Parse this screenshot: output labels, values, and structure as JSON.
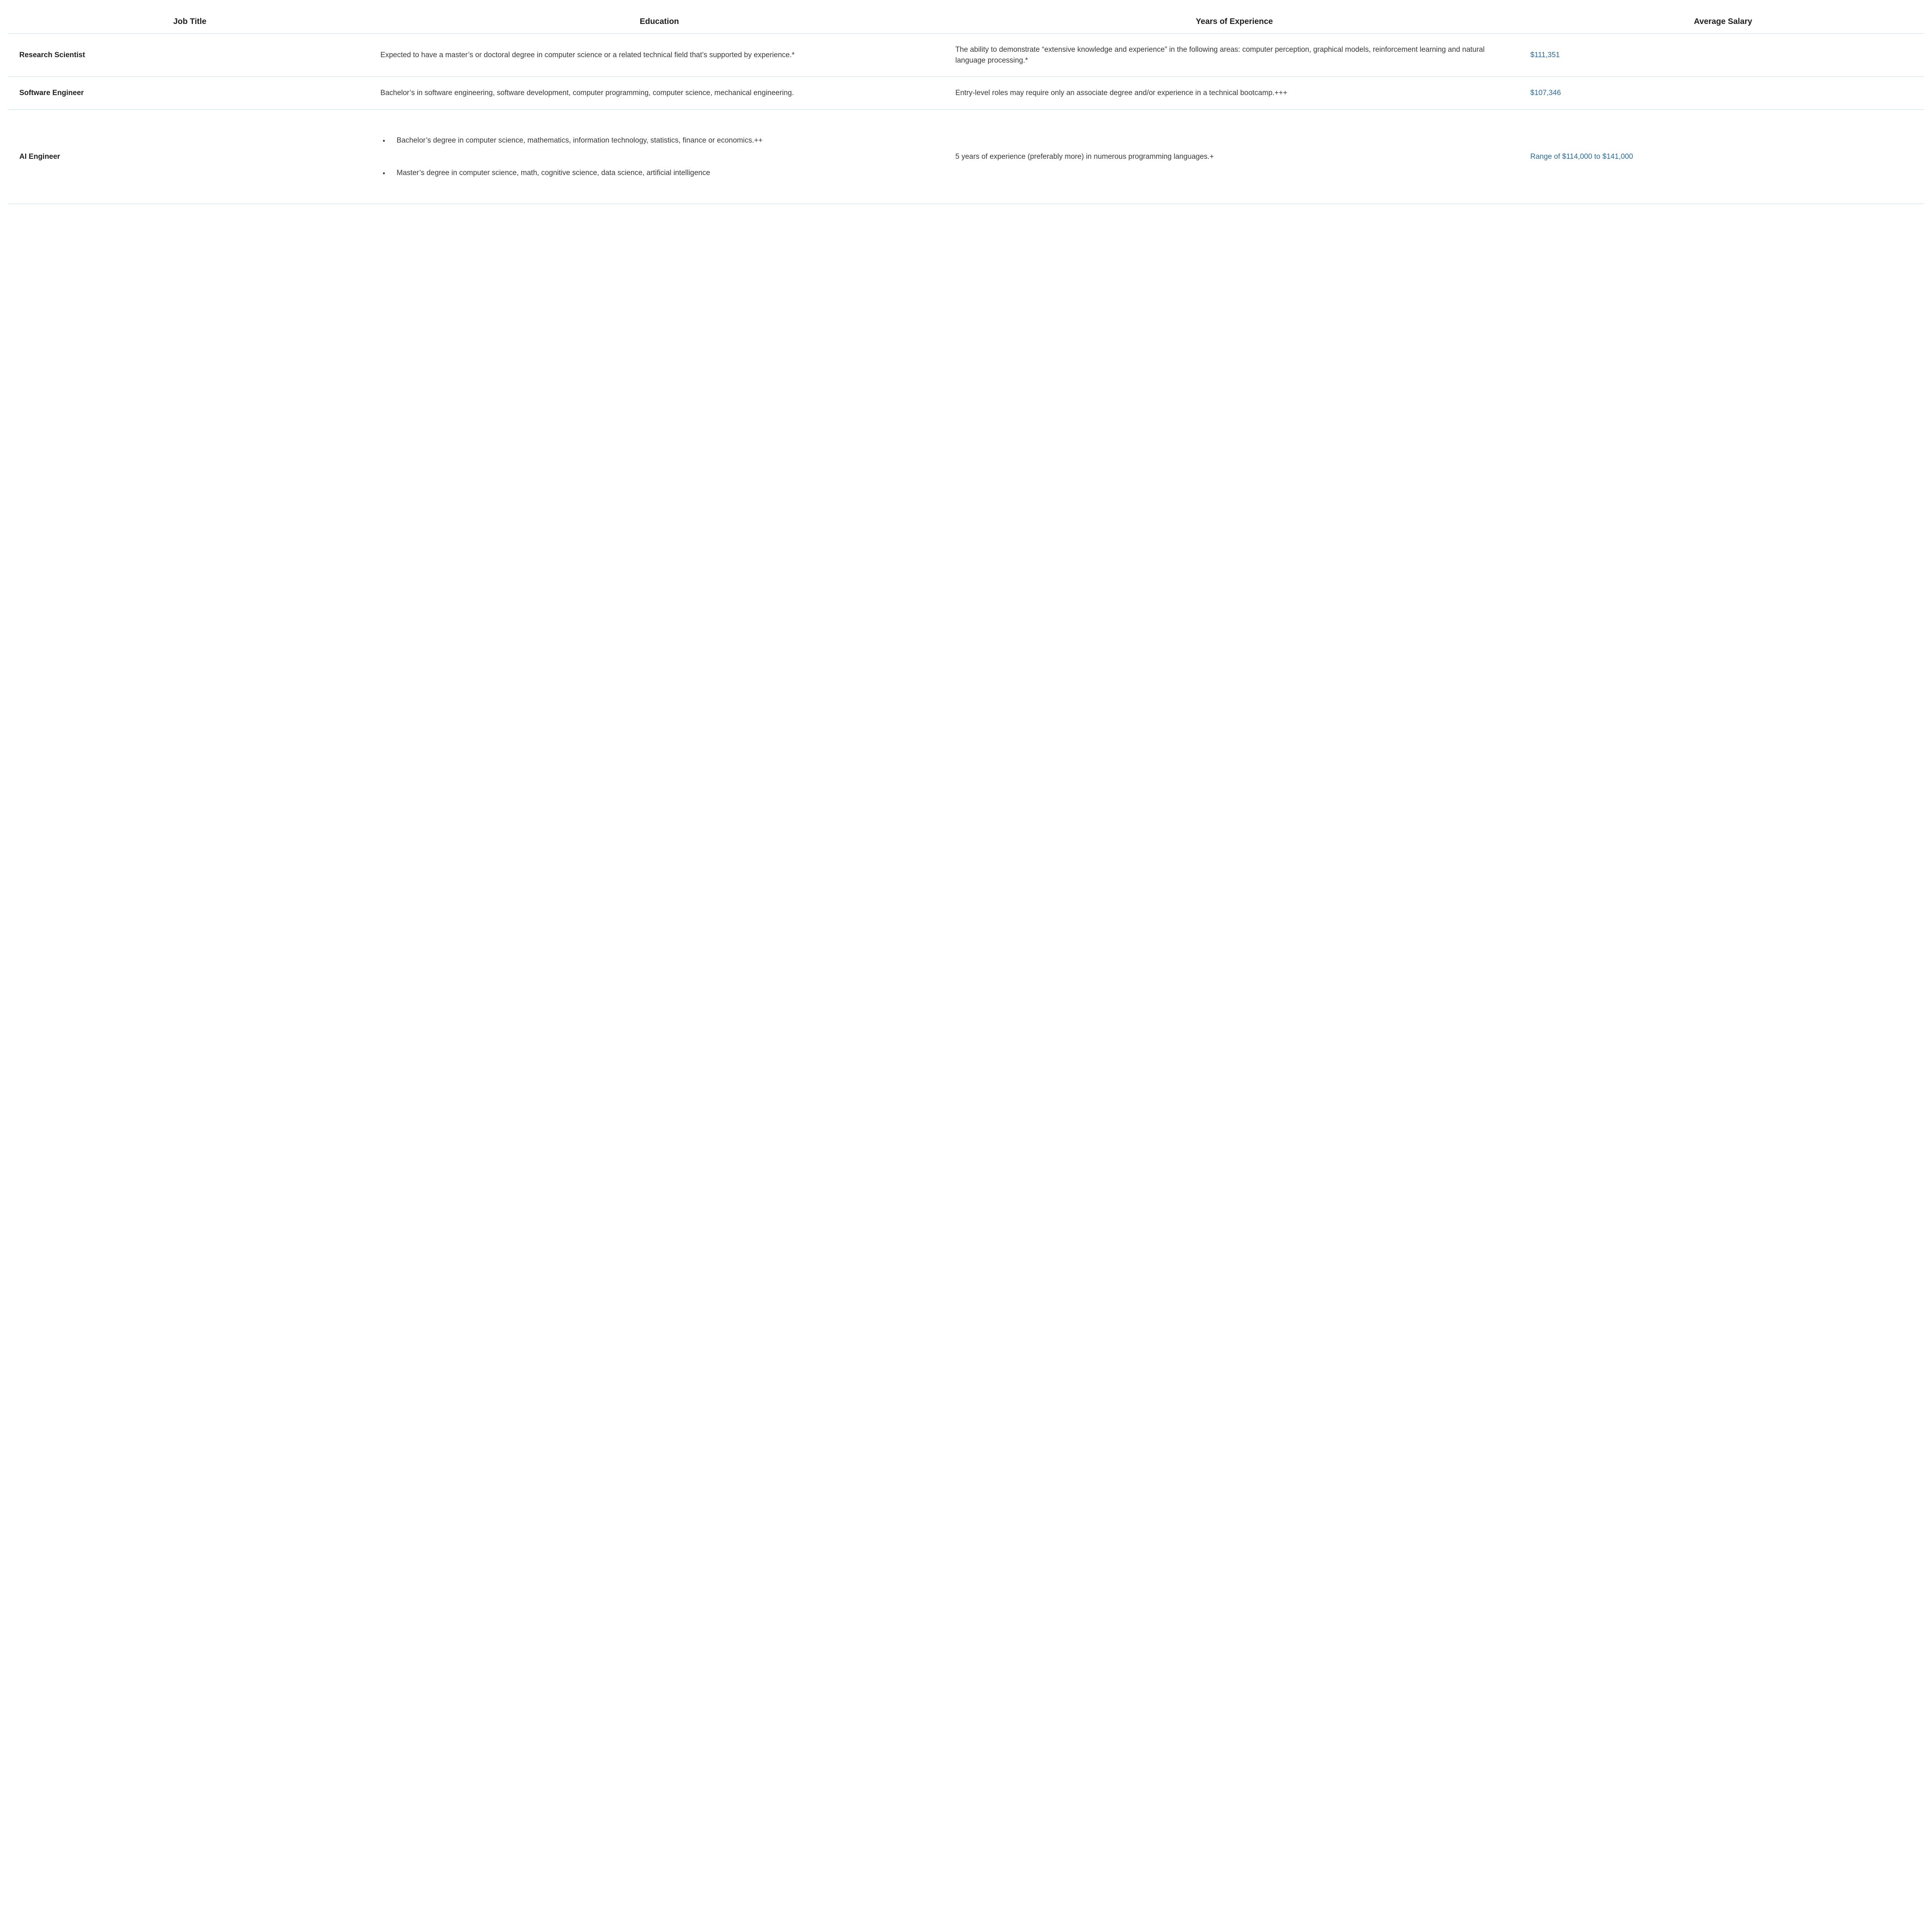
{
  "table": {
    "type": "table",
    "background_color": "#ffffff",
    "border_color": "#bfe0f0",
    "text_color": "#3a3a3a",
    "header_text_color": "#1f1f1f",
    "salary_link_color": "#2a6a9e",
    "header_fontsize": 21,
    "body_fontsize": 19,
    "column_widths_pct": [
      19,
      30,
      30,
      21
    ],
    "columns": [
      "Job Title",
      "Education",
      "Years of Experience",
      "Average Salary"
    ],
    "rows": [
      {
        "title": "Research Scientist",
        "education_text": "Expected to have a master’s or doctoral degree in computer science or a related technical field that’s supported by experience.*",
        "experience": "The ability to demonstrate “extensive knowledge and experience” in the following areas: computer perception, graphical models, reinforcement learning and natural language processing.*",
        "salary": "$111,351"
      },
      {
        "title": "Software Engineer",
        "education_text": "Bachelor’s in software engineering, software development, computer programming, computer science, mechanical engineering.",
        "experience": "Entry-level roles may require only an associate degree and/or experience in a technical bootcamp.+++",
        "salary": "$107,346"
      },
      {
        "title": "AI Engineer",
        "education_list": [
          "Bachelor’s degree in computer science, mathematics, information technology, statistics, finance or economics.++",
          "Master’s degree in computer science, math, cognitive science, data science, artificial intelligence"
        ],
        "experience": "5 years of experience (preferably more) in numerous programming languages.+",
        "salary": "Range of $114,000 to $141,000"
      }
    ]
  }
}
